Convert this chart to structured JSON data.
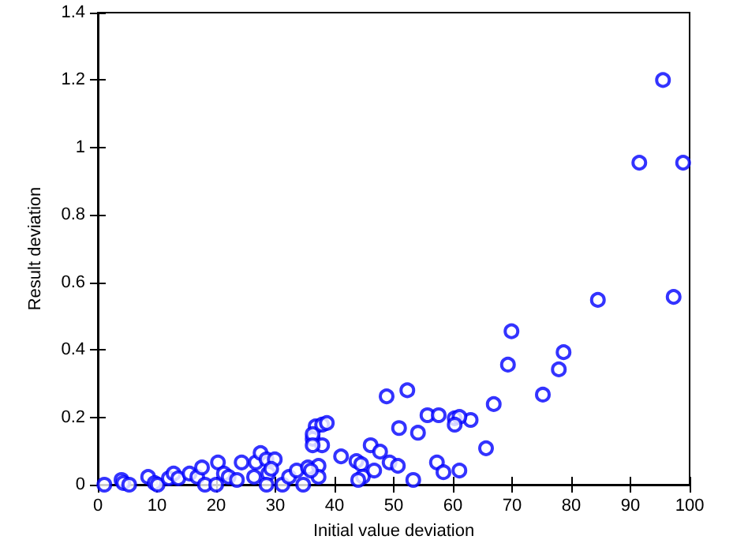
{
  "chart_data": {
    "type": "scatter",
    "xlabel": "Initial value deviation",
    "ylabel": "Result deviation",
    "marker": "circle",
    "grid": false,
    "xlim": [
      0,
      100
    ],
    "xticks": [
      0,
      10,
      20,
      30,
      40,
      50,
      60,
      70,
      80,
      90,
      100
    ],
    "ylim": [
      0,
      1.4
    ],
    "yticks": [
      0,
      0.2,
      0.4,
      0.6,
      0.8,
      1,
      1.2,
      1.4
    ],
    "series": [
      {
        "color": "#0000ff",
        "x": [
          1.1,
          4,
          4.3,
          5.3,
          8.5,
          9.6,
          10.1,
          12,
          12.8,
          13.6,
          15.5,
          16.8,
          17.6,
          18.1,
          20,
          20.3,
          21.3,
          22.1,
          23.5,
          24.3,
          26.4,
          26.7,
          27.5,
          28.5,
          29.9,
          28.8,
          29.3,
          28.5,
          31.2,
          32.3,
          33.6,
          34.7,
          35.5,
          36.3,
          36.8,
          36.3,
          37.9,
          38.7,
          37.9,
          36.3,
          37.3,
          37.3,
          36,
          41.1,
          43.7,
          44.5,
          44.8,
          44,
          46.7,
          46.1,
          47.7,
          49.3,
          50.7,
          53.3,
          57.3,
          58.4,
          61.1,
          48.8,
          52.3,
          50.9,
          55.7,
          57.6,
          60.3,
          63,
          54.1,
          61.1,
          60.3,
          65.6,
          66.9,
          75.2,
          77.9,
          78.7,
          69.3,
          69.9,
          84.5,
          97.3,
          91.5,
          98.9,
          95.5
        ],
        "values": [
          0,
          0.014,
          0.005,
          0,
          0.023,
          0.005,
          0,
          0.019,
          0.033,
          0.019,
          0.033,
          0.023,
          0.051,
          0,
          0,
          0.066,
          0.033,
          0.023,
          0.014,
          0.066,
          0.023,
          0.066,
          0.094,
          0.075,
          0.075,
          0.033,
          0.047,
          0,
          0,
          0.023,
          0.042,
          0,
          0.051,
          0.136,
          0.173,
          0.15,
          0.178,
          0.183,
          0.117,
          0.117,
          0.056,
          0.023,
          0.042,
          0.084,
          0.07,
          0.061,
          0.024,
          0.014,
          0.042,
          0.117,
          0.098,
          0.066,
          0.056,
          0.014,
          0.066,
          0.037,
          0.042,
          0.262,
          0.28,
          0.168,
          0.206,
          0.206,
          0.197,
          0.192,
          0.154,
          0.201,
          0.178,
          0.108,
          0.239,
          0.267,
          0.342,
          0.393,
          0.356,
          0.455,
          0.548,
          0.557,
          0.955,
          0.955,
          1.2
        ]
      }
    ]
  }
}
